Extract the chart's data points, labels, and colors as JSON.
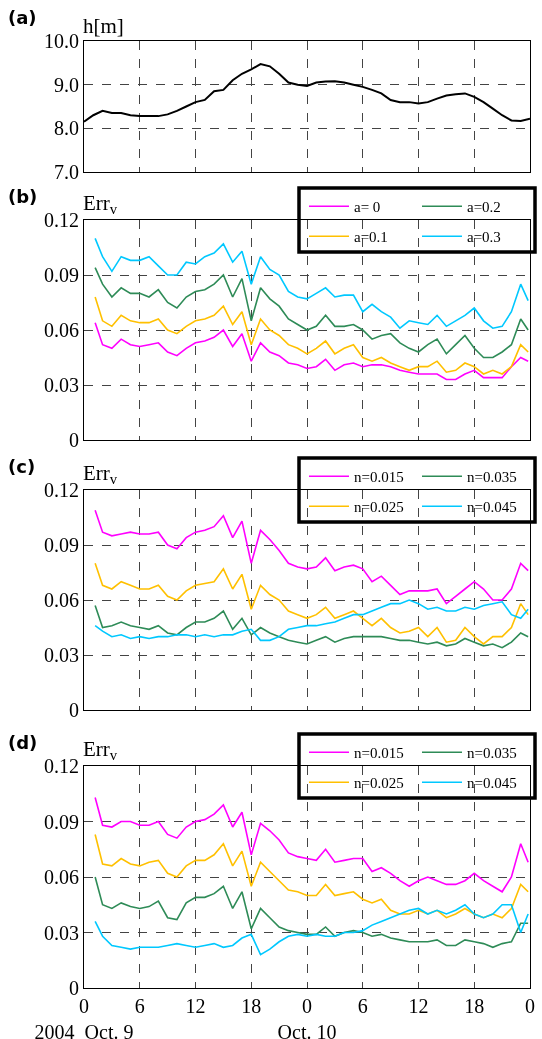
{
  "chart_data": [
    {
      "type": "line",
      "ylabel": "h[m]",
      "annotations": [
        "(a)"
      ],
      "x": [
        "2004-10-09T00:00",
        "2004-10-09T01:00",
        "2004-10-09T02:00",
        "2004-10-09T03:00",
        "2004-10-09T04:00",
        "2004-10-09T05:00",
        "2004-10-09T06:00",
        "2004-10-09T07:00",
        "2004-10-09T08:00",
        "2004-10-09T09:00",
        "2004-10-09T10:00",
        "2004-10-09T11:00",
        "2004-10-09T12:00",
        "2004-10-09T13:00",
        "2004-10-09T14:00",
        "2004-10-09T15:00",
        "2004-10-09T16:00",
        "2004-10-09T17:00",
        "2004-10-09T18:00",
        "2004-10-09T19:00",
        "2004-10-09T20:00",
        "2004-10-09T21:00",
        "2004-10-09T22:00",
        "2004-10-09T23:00",
        "2004-10-10T00:00",
        "2004-10-10T01:00",
        "2004-10-10T02:00",
        "2004-10-10T03:00",
        "2004-10-10T04:00",
        "2004-10-10T05:00",
        "2004-10-10T06:00",
        "2004-10-10T07:00",
        "2004-10-10T08:00",
        "2004-10-10T09:00",
        "2004-10-10T10:00",
        "2004-10-10T11:00",
        "2004-10-10T12:00",
        "2004-10-10T13:00",
        "2004-10-10T14:00",
        "2004-10-10T15:00",
        "2004-10-10T16:00",
        "2004-10-10T17:00",
        "2004-10-10T18:00",
        "2004-10-10T19:00",
        "2004-10-10T20:00",
        "2004-10-10T21:00",
        "2004-10-10T22:00",
        "2004-10-10T23:00",
        "2004-10-11T00:00"
      ],
      "values": [
        8.15,
        8.3,
        8.4,
        8.35,
        8.35,
        8.3,
        8.28,
        8.28,
        8.28,
        8.32,
        8.4,
        8.5,
        8.6,
        8.65,
        8.85,
        8.88,
        9.1,
        9.25,
        9.35,
        9.47,
        9.42,
        9.25,
        9.05,
        9.0,
        8.97,
        9.05,
        9.07,
        9.08,
        9.05,
        9.0,
        8.95,
        8.88,
        8.8,
        8.65,
        8.6,
        8.6,
        8.57,
        8.6,
        8.68,
        8.75,
        8.78,
        8.8,
        8.72,
        8.6,
        8.45,
        8.3,
        8.18,
        8.17,
        8.22
      ],
      "color": "#000000",
      "xlim": [
        "2004-10-09T00:00",
        "2004-10-11T00:00"
      ],
      "ylim": [
        7,
        10
      ],
      "xticks": [
        {
          "value": "2004-10-09T00:00",
          "label": null
        },
        {
          "value": "2004-10-09T06:00",
          "label": null
        },
        {
          "value": "2004-10-09T12:00",
          "label": null
        },
        {
          "value": "2004-10-09T18:00",
          "label": null
        },
        {
          "value": "2004-10-10T00:00",
          "label": null
        },
        {
          "value": "2004-10-10T06:00",
          "label": null
        },
        {
          "value": "2004-10-10T12:00",
          "label": null
        },
        {
          "value": "2004-10-10T18:00",
          "label": null
        },
        {
          "value": "2004-10-11T00:00",
          "label": null
        }
      ],
      "yticks": [
        {
          "value": 7,
          "label": "7.0"
        },
        {
          "value": 8,
          "label": "8.0"
        },
        {
          "value": 9,
          "label": "9.0"
        },
        {
          "value": 10,
          "label": "10.0"
        }
      ],
      "tick_labels": "y",
      "grid": true,
      "line_style": "solid"
    },
    {
      "type": "line",
      "ylabel": "Err$_{v}$",
      "annotations": [
        "(b)"
      ],
      "x": [
        "2004-10-09T01:12",
        "2004-10-09T02:00",
        "2004-10-09T03:00",
        "2004-10-09T04:00",
        "2004-10-09T05:00",
        "2004-10-09T06:00",
        "2004-10-09T07:00",
        "2004-10-09T08:00",
        "2004-10-09T09:00",
        "2004-10-09T10:00",
        "2004-10-09T11:00",
        "2004-10-09T12:00",
        "2004-10-09T13:00",
        "2004-10-09T14:00",
        "2004-10-09T15:00",
        "2004-10-09T16:00",
        "2004-10-09T17:00",
        "2004-10-09T18:00",
        "2004-10-09T19:00",
        "2004-10-09T20:00",
        "2004-10-09T21:00",
        "2004-10-09T22:00",
        "2004-10-09T23:00",
        "2004-10-10T00:00",
        "2004-10-10T01:00",
        "2004-10-10T02:00",
        "2004-10-10T03:00",
        "2004-10-10T04:00",
        "2004-10-10T05:00",
        "2004-10-10T06:00",
        "2004-10-10T07:00",
        "2004-10-10T08:00",
        "2004-10-10T09:00",
        "2004-10-10T10:00",
        "2004-10-10T11:00",
        "2004-10-10T12:00",
        "2004-10-10T13:00",
        "2004-10-10T14:00",
        "2004-10-10T15:00",
        "2004-10-10T16:00",
        "2004-10-10T17:00",
        "2004-10-10T18:00",
        "2004-10-10T19:00",
        "2004-10-10T20:00",
        "2004-10-10T21:00",
        "2004-10-10T22:00",
        "2004-10-10T23:00",
        "2004-10-10T23:48"
      ],
      "series": [
        {
          "name": "a= 0",
          "color": "#ff00ff",
          "values": [
            0.064,
            0.052,
            0.05,
            0.055,
            0.052,
            0.051,
            0.052,
            0.053,
            0.048,
            0.046,
            0.05,
            0.053,
            0.054,
            0.056,
            0.06,
            0.051,
            0.058,
            0.043,
            0.053,
            0.048,
            0.046,
            0.042,
            0.041,
            0.039,
            0.04,
            0.044,
            0.038,
            0.041,
            0.042,
            0.04,
            0.041,
            0.041,
            0.04,
            0.038,
            0.037,
            0.036,
            0.036,
            0.036,
            0.033,
            0.033,
            0.036,
            0.038,
            0.034,
            0.034,
            0.034,
            0.04,
            0.045,
            0.043
          ]
        },
        {
          "name": "a=0.2",
          "color": "#2e8b57",
          "values": [
            0.094,
            0.085,
            0.078,
            0.083,
            0.08,
            0.08,
            0.078,
            0.082,
            0.075,
            0.072,
            0.078,
            0.081,
            0.082,
            0.085,
            0.09,
            0.078,
            0.088,
            0.065,
            0.083,
            0.077,
            0.073,
            0.066,
            0.063,
            0.06,
            0.062,
            0.068,
            0.062,
            0.062,
            0.063,
            0.06,
            0.055,
            0.057,
            0.058,
            0.053,
            0.05,
            0.048,
            0.052,
            0.055,
            0.047,
            0.052,
            0.057,
            0.05,
            0.045,
            0.045,
            0.048,
            0.052,
            0.066,
            0.06
          ]
        },
        {
          "name": "a=0.1",
          "color": "#ffc000",
          "values": [
            0.078,
            0.065,
            0.062,
            0.068,
            0.065,
            0.064,
            0.064,
            0.066,
            0.06,
            0.058,
            0.062,
            0.065,
            0.066,
            0.068,
            0.073,
            0.063,
            0.07,
            0.052,
            0.066,
            0.06,
            0.057,
            0.052,
            0.05,
            0.047,
            0.05,
            0.054,
            0.047,
            0.05,
            0.052,
            0.045,
            0.043,
            0.045,
            0.042,
            0.04,
            0.038,
            0.04,
            0.04,
            0.043,
            0.037,
            0.038,
            0.042,
            0.04,
            0.036,
            0.038,
            0.036,
            0.04,
            0.052,
            0.048
          ]
        },
        {
          "name": "a=0.3",
          "color": "#00c8ff",
          "values": [
            0.11,
            0.1,
            0.092,
            0.1,
            0.098,
            0.098,
            0.1,
            0.095,
            0.09,
            0.09,
            0.097,
            0.096,
            0.1,
            0.102,
            0.107,
            0.097,
            0.103,
            0.085,
            0.1,
            0.093,
            0.09,
            0.081,
            0.078,
            0.077,
            0.08,
            0.083,
            0.078,
            0.079,
            0.079,
            0.07,
            0.074,
            0.07,
            0.067,
            0.061,
            0.065,
            0.064,
            0.063,
            0.068,
            0.062,
            0.065,
            0.068,
            0.072,
            0.065,
            0.061,
            0.062,
            0.07,
            0.085,
            0.076
          ]
        }
      ],
      "xlim": [
        "2004-10-09T00:00",
        "2004-10-11T00:00"
      ],
      "ylim": [
        0,
        0.12
      ],
      "xticks": [
        {
          "value": "2004-10-09T00:00",
          "label": null
        },
        {
          "value": "2004-10-09T06:00",
          "label": null
        },
        {
          "value": "2004-10-09T12:00",
          "label": null
        },
        {
          "value": "2004-10-09T18:00",
          "label": null
        },
        {
          "value": "2004-10-10T00:00",
          "label": null
        },
        {
          "value": "2004-10-10T06:00",
          "label": null
        },
        {
          "value": "2004-10-10T12:00",
          "label": null
        },
        {
          "value": "2004-10-10T18:00",
          "label": null
        },
        {
          "value": "2004-10-11T00:00",
          "label": null
        }
      ],
      "yticks": [
        0,
        0.03,
        0.06,
        0.09,
        0.12
      ],
      "tick_labels": "y",
      "grid": true,
      "legend": "top right",
      "line_style": "solid"
    },
    {
      "type": "line",
      "ylabel": "Err$_{v}$",
      "annotations": [
        "(c)"
      ],
      "x": [
        "2004-10-09T01:12",
        "2004-10-09T02:00",
        "2004-10-09T03:00",
        "2004-10-09T04:00",
        "2004-10-09T05:00",
        "2004-10-09T06:00",
        "2004-10-09T07:00",
        "2004-10-09T08:00",
        "2004-10-09T09:00",
        "2004-10-09T10:00",
        "2004-10-09T11:00",
        "2004-10-09T12:00",
        "2004-10-09T13:00",
        "2004-10-09T14:00",
        "2004-10-09T15:00",
        "2004-10-09T16:00",
        "2004-10-09T17:00",
        "2004-10-09T18:00",
        "2004-10-09T19:00",
        "2004-10-09T20:00",
        "2004-10-09T21:00",
        "2004-10-09T22:00",
        "2004-10-09T23:00",
        "2004-10-10T00:00",
        "2004-10-10T01:00",
        "2004-10-10T02:00",
        "2004-10-10T03:00",
        "2004-10-10T04:00",
        "2004-10-10T05:00",
        "2004-10-10T06:00",
        "2004-10-10T07:00",
        "2004-10-10T08:00",
        "2004-10-10T09:00",
        "2004-10-10T10:00",
        "2004-10-10T11:00",
        "2004-10-10T12:00",
        "2004-10-10T13:00",
        "2004-10-10T14:00",
        "2004-10-10T15:00",
        "2004-10-10T16:00",
        "2004-10-10T17:00",
        "2004-10-10T18:00",
        "2004-10-10T19:00",
        "2004-10-10T20:00",
        "2004-10-10T21:00",
        "2004-10-10T22:00",
        "2004-10-10T23:00",
        "2004-10-10T23:48"
      ],
      "series": [
        {
          "name": "n=0.015",
          "color": "#ff00ff",
          "values": [
            0.109,
            0.097,
            0.095,
            0.096,
            0.097,
            0.096,
            0.096,
            0.097,
            0.09,
            0.088,
            0.094,
            0.097,
            0.098,
            0.1,
            0.106,
            0.094,
            0.103,
            0.08,
            0.098,
            0.093,
            0.087,
            0.08,
            0.078,
            0.077,
            0.078,
            0.083,
            0.076,
            0.078,
            0.079,
            0.077,
            0.07,
            0.073,
            0.068,
            0.063,
            0.065,
            0.065,
            0.065,
            0.066,
            0.058,
            0.062,
            0.066,
            0.07,
            0.066,
            0.06,
            0.06,
            0.066,
            0.08,
            0.076
          ]
        },
        {
          "name": "n=0.035",
          "color": "#2e8b57",
          "values": [
            0.057,
            0.045,
            0.046,
            0.048,
            0.046,
            0.045,
            0.044,
            0.046,
            0.042,
            0.041,
            0.045,
            0.048,
            0.048,
            0.05,
            0.054,
            0.044,
            0.05,
            0.041,
            0.045,
            0.042,
            0.04,
            0.038,
            0.037,
            0.036,
            0.038,
            0.04,
            0.037,
            0.039,
            0.04,
            0.04,
            0.04,
            0.04,
            0.039,
            0.038,
            0.038,
            0.037,
            0.036,
            0.037,
            0.035,
            0.036,
            0.039,
            0.037,
            0.035,
            0.036,
            0.034,
            0.037,
            0.042,
            0.04
          ]
        },
        {
          "name": "n=0.025",
          "color": "#ffc000",
          "values": [
            0.08,
            0.068,
            0.066,
            0.07,
            0.068,
            0.066,
            0.066,
            0.068,
            0.062,
            0.06,
            0.065,
            0.068,
            0.069,
            0.07,
            0.077,
            0.066,
            0.074,
            0.055,
            0.068,
            0.063,
            0.06,
            0.054,
            0.052,
            0.05,
            0.052,
            0.056,
            0.05,
            0.052,
            0.054,
            0.05,
            0.046,
            0.05,
            0.045,
            0.042,
            0.043,
            0.045,
            0.04,
            0.045,
            0.037,
            0.038,
            0.045,
            0.04,
            0.036,
            0.04,
            0.04,
            0.045,
            0.058,
            0.052
          ]
        },
        {
          "name": "n=0.045",
          "color": "#00c8ff",
          "values": [
            0.046,
            0.043,
            0.04,
            0.041,
            0.039,
            0.04,
            0.039,
            0.04,
            0.04,
            0.041,
            0.041,
            0.04,
            0.041,
            0.04,
            0.041,
            0.041,
            0.043,
            0.044,
            0.038,
            0.038,
            0.04,
            0.044,
            0.045,
            0.046,
            0.046,
            0.047,
            0.048,
            0.05,
            0.052,
            0.052,
            0.054,
            0.056,
            0.058,
            0.058,
            0.06,
            0.058,
            0.055,
            0.056,
            0.054,
            0.054,
            0.056,
            0.055,
            0.057,
            0.058,
            0.059,
            0.052,
            0.05,
            0.055
          ]
        }
      ],
      "xlim": [
        "2004-10-09T00:00",
        "2004-10-11T00:00"
      ],
      "ylim": [
        0,
        0.12
      ],
      "xticks": [
        {
          "value": "2004-10-09T00:00",
          "label": null
        },
        {
          "value": "2004-10-09T06:00",
          "label": null
        },
        {
          "value": "2004-10-09T12:00",
          "label": null
        },
        {
          "value": "2004-10-09T18:00",
          "label": null
        },
        {
          "value": "2004-10-10T00:00",
          "label": null
        },
        {
          "value": "2004-10-10T06:00",
          "label": null
        },
        {
          "value": "2004-10-10T12:00",
          "label": null
        },
        {
          "value": "2004-10-10T18:00",
          "label": null
        },
        {
          "value": "2004-10-11T00:00",
          "label": null
        }
      ],
      "yticks": [
        0,
        0.03,
        0.06,
        0.09,
        0.12
      ],
      "tick_labels": "y",
      "grid": true,
      "legend": "top right",
      "line_style": "solid"
    },
    {
      "type": "line",
      "ylabel": "Err$_{v}$",
      "annotations": [
        "(d)"
      ],
      "x": [
        "2004-10-09T01:12",
        "2004-10-09T02:00",
        "2004-10-09T03:00",
        "2004-10-09T04:00",
        "2004-10-09T05:00",
        "2004-10-09T06:00",
        "2004-10-09T07:00",
        "2004-10-09T08:00",
        "2004-10-09T09:00",
        "2004-10-09T10:00",
        "2004-10-09T11:00",
        "2004-10-09T12:00",
        "2004-10-09T13:00",
        "2004-10-09T14:00",
        "2004-10-09T15:00",
        "2004-10-09T16:00",
        "2004-10-09T17:00",
        "2004-10-09T18:00",
        "2004-10-09T19:00",
        "2004-10-09T20:00",
        "2004-10-09T21:00",
        "2004-10-09T22:00",
        "2004-10-09T23:00",
        "2004-10-10T00:00",
        "2004-10-10T01:00",
        "2004-10-10T02:00",
        "2004-10-10T03:00",
        "2004-10-10T04:00",
        "2004-10-10T05:00",
        "2004-10-10T06:00",
        "2004-10-10T07:00",
        "2004-10-10T08:00",
        "2004-10-10T09:00",
        "2004-10-10T10:00",
        "2004-10-10T11:00",
        "2004-10-10T12:00",
        "2004-10-10T13:00",
        "2004-10-10T14:00",
        "2004-10-10T15:00",
        "2004-10-10T16:00",
        "2004-10-10T17:00",
        "2004-10-10T18:00",
        "2004-10-10T19:00",
        "2004-10-10T20:00",
        "2004-10-10T21:00",
        "2004-10-10T22:00",
        "2004-10-10T23:00",
        "2004-10-10T23:48"
      ],
      "series": [
        {
          "name": "n=0.015",
          "color": "#ff00ff",
          "values": [
            0.103,
            0.088,
            0.087,
            0.09,
            0.09,
            0.088,
            0.088,
            0.09,
            0.083,
            0.081,
            0.087,
            0.09,
            0.091,
            0.094,
            0.099,
            0.087,
            0.095,
            0.072,
            0.089,
            0.085,
            0.08,
            0.073,
            0.071,
            0.07,
            0.069,
            0.075,
            0.068,
            0.069,
            0.07,
            0.07,
            0.063,
            0.065,
            0.062,
            0.058,
            0.055,
            0.058,
            0.06,
            0.058,
            0.056,
            0.056,
            0.058,
            0.062,
            0.058,
            0.055,
            0.052,
            0.06,
            0.078,
            0.068
          ]
        },
        {
          "name": "n=0.035",
          "color": "#2e8b57",
          "values": [
            0.06,
            0.045,
            0.043,
            0.046,
            0.044,
            0.043,
            0.044,
            0.047,
            0.038,
            0.037,
            0.046,
            0.049,
            0.049,
            0.051,
            0.055,
            0.043,
            0.052,
            0.032,
            0.043,
            0.038,
            0.033,
            0.031,
            0.03,
            0.029,
            0.029,
            0.033,
            0.028,
            0.03,
            0.031,
            0.03,
            0.028,
            0.029,
            0.027,
            0.026,
            0.025,
            0.025,
            0.025,
            0.026,
            0.023,
            0.023,
            0.026,
            0.025,
            0.024,
            0.022,
            0.024,
            0.025,
            0.035,
            0.035
          ]
        },
        {
          "name": "n=0.025",
          "color": "#ffc000",
          "values": [
            0.083,
            0.067,
            0.066,
            0.07,
            0.067,
            0.066,
            0.068,
            0.069,
            0.062,
            0.06,
            0.066,
            0.069,
            0.069,
            0.072,
            0.078,
            0.066,
            0.074,
            0.055,
            0.068,
            0.063,
            0.058,
            0.053,
            0.052,
            0.05,
            0.05,
            0.056,
            0.05,
            0.051,
            0.052,
            0.048,
            0.046,
            0.048,
            0.042,
            0.04,
            0.04,
            0.042,
            0.04,
            0.042,
            0.038,
            0.04,
            0.043,
            0.04,
            0.038,
            0.04,
            0.038,
            0.043,
            0.056,
            0.052
          ]
        },
        {
          "name": "n=0.045",
          "color": "#00c8ff",
          "values": [
            0.036,
            0.028,
            0.023,
            0.022,
            0.021,
            0.022,
            0.022,
            0.022,
            0.023,
            0.024,
            0.023,
            0.022,
            0.023,
            0.024,
            0.022,
            0.023,
            0.027,
            0.029,
            0.018,
            0.021,
            0.025,
            0.028,
            0.029,
            0.028,
            0.029,
            0.028,
            0.028,
            0.03,
            0.03,
            0.031,
            0.034,
            0.036,
            0.038,
            0.04,
            0.042,
            0.043,
            0.04,
            0.042,
            0.04,
            0.042,
            0.045,
            0.04,
            0.038,
            0.04,
            0.045,
            0.045,
            0.03,
            0.04
          ]
        }
      ],
      "xlim": [
        "2004-10-09T00:00",
        "2004-10-11T00:00"
      ],
      "ylim": [
        0,
        0.12
      ],
      "xticks": [
        {
          "value": "2004-10-09T00:00",
          "label": "0\n2004  Oct. 9"
        },
        {
          "value": "2004-10-09T06:00",
          "label": "6"
        },
        {
          "value": "2004-10-09T12:00",
          "label": "12"
        },
        {
          "value": "2004-10-09T18:00",
          "label": "18"
        },
        {
          "value": "2004-10-10T00:00",
          "label": "0\nOct. 10"
        },
        {
          "value": "2004-10-10T06:00",
          "label": "6"
        },
        {
          "value": "2004-10-10T12:00",
          "label": "12"
        },
        {
          "value": "2004-10-10T18:00",
          "label": "18"
        },
        {
          "value": "2004-10-11T00:00",
          "label": "0"
        }
      ],
      "yticks": [
        0,
        0.03,
        0.06,
        0.09,
        0.12
      ],
      "grid": true,
      "legend": "top right",
      "line_style": "solid"
    }
  ]
}
